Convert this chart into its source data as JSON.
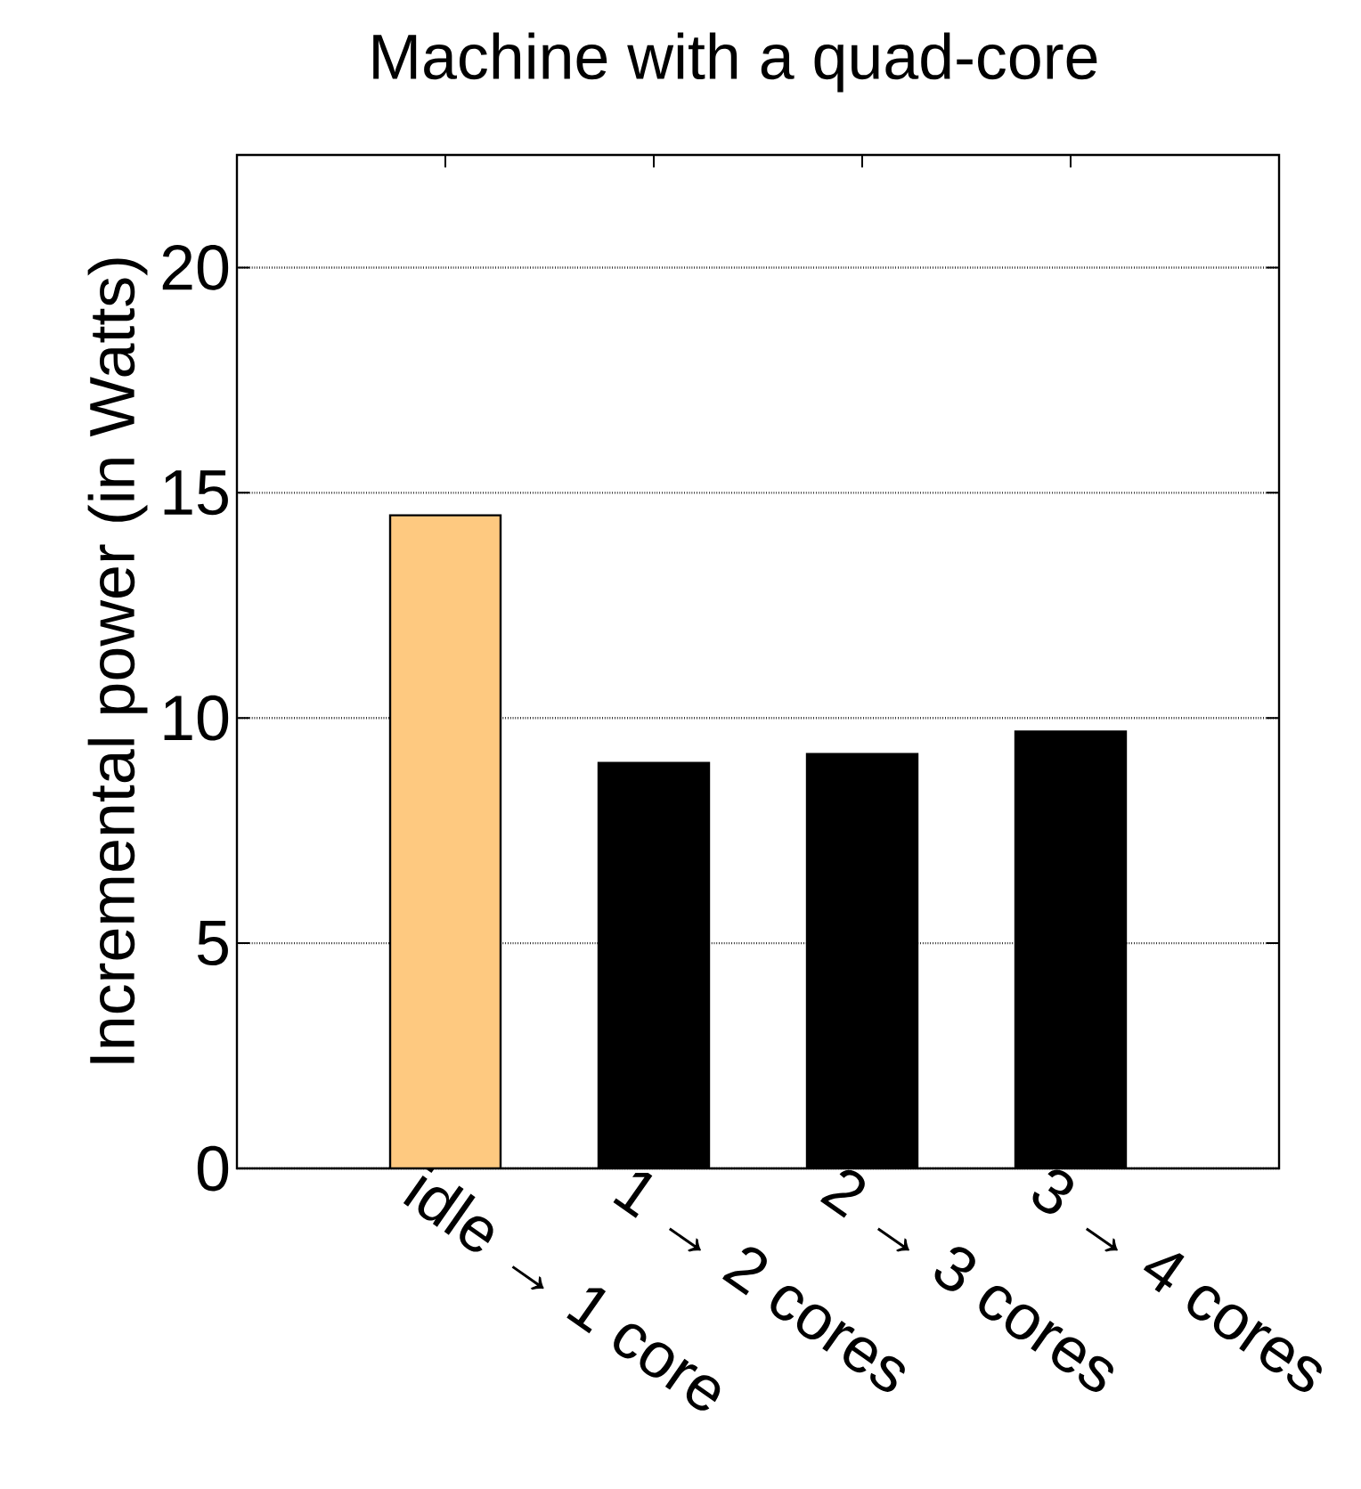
{
  "chart_data": {
    "type": "bar",
    "title": "Machine with a quad-core",
    "ylabel": "Incremental power (in Watts)",
    "categories": [
      "idle → 1 core",
      "1 → 2 cores",
      "2 → 3 cores",
      "3 → 4 cores"
    ],
    "values": [
      14.5,
      9.0,
      9.2,
      9.7
    ],
    "colors": [
      "#fec980",
      "#000000",
      "#000000",
      "#000000"
    ],
    "ylim": [
      0,
      22.5
    ],
    "yticks": [
      0,
      5,
      10,
      15,
      20
    ],
    "grid": "y"
  }
}
